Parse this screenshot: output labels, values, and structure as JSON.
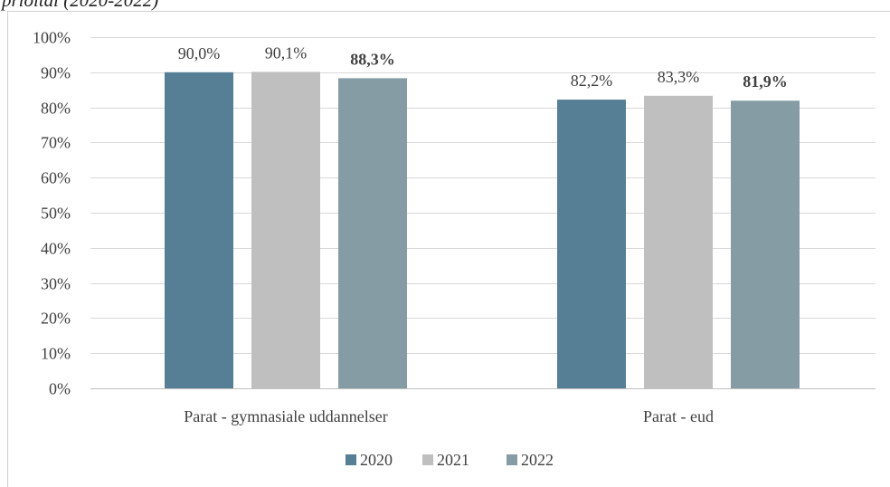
{
  "page": {
    "clipped_title": "prioital (2020-2022)"
  },
  "chart_data": {
    "type": "bar",
    "categories": [
      "Parat - gymnasiale uddannelser",
      "Parat - eud"
    ],
    "series": [
      {
        "name": "2020",
        "values": [
          90.0,
          82.2
        ],
        "labels": [
          "90,0%",
          "82,2%"
        ],
        "color": "#567f95",
        "bold": false
      },
      {
        "name": "2021",
        "values": [
          90.1,
          83.3
        ],
        "labels": [
          "90,1%",
          "83,3%"
        ],
        "color": "#bfbfbf",
        "bold": false
      },
      {
        "name": "2022",
        "values": [
          88.3,
          81.9
        ],
        "labels": [
          "88,3%",
          "81,9%"
        ],
        "color": "#869ca4",
        "bold": true
      }
    ],
    "ylim": [
      0,
      100
    ],
    "yticks": [
      0,
      10,
      20,
      30,
      40,
      50,
      60,
      70,
      80,
      90,
      100
    ],
    "ytick_labels": [
      "0%",
      "10%",
      "20%",
      "30%",
      "40%",
      "50%",
      "60%",
      "70%",
      "80%",
      "90%",
      "100%"
    ],
    "grid": true,
    "legend_position": "bottom",
    "xlabel": "",
    "ylabel": ""
  }
}
